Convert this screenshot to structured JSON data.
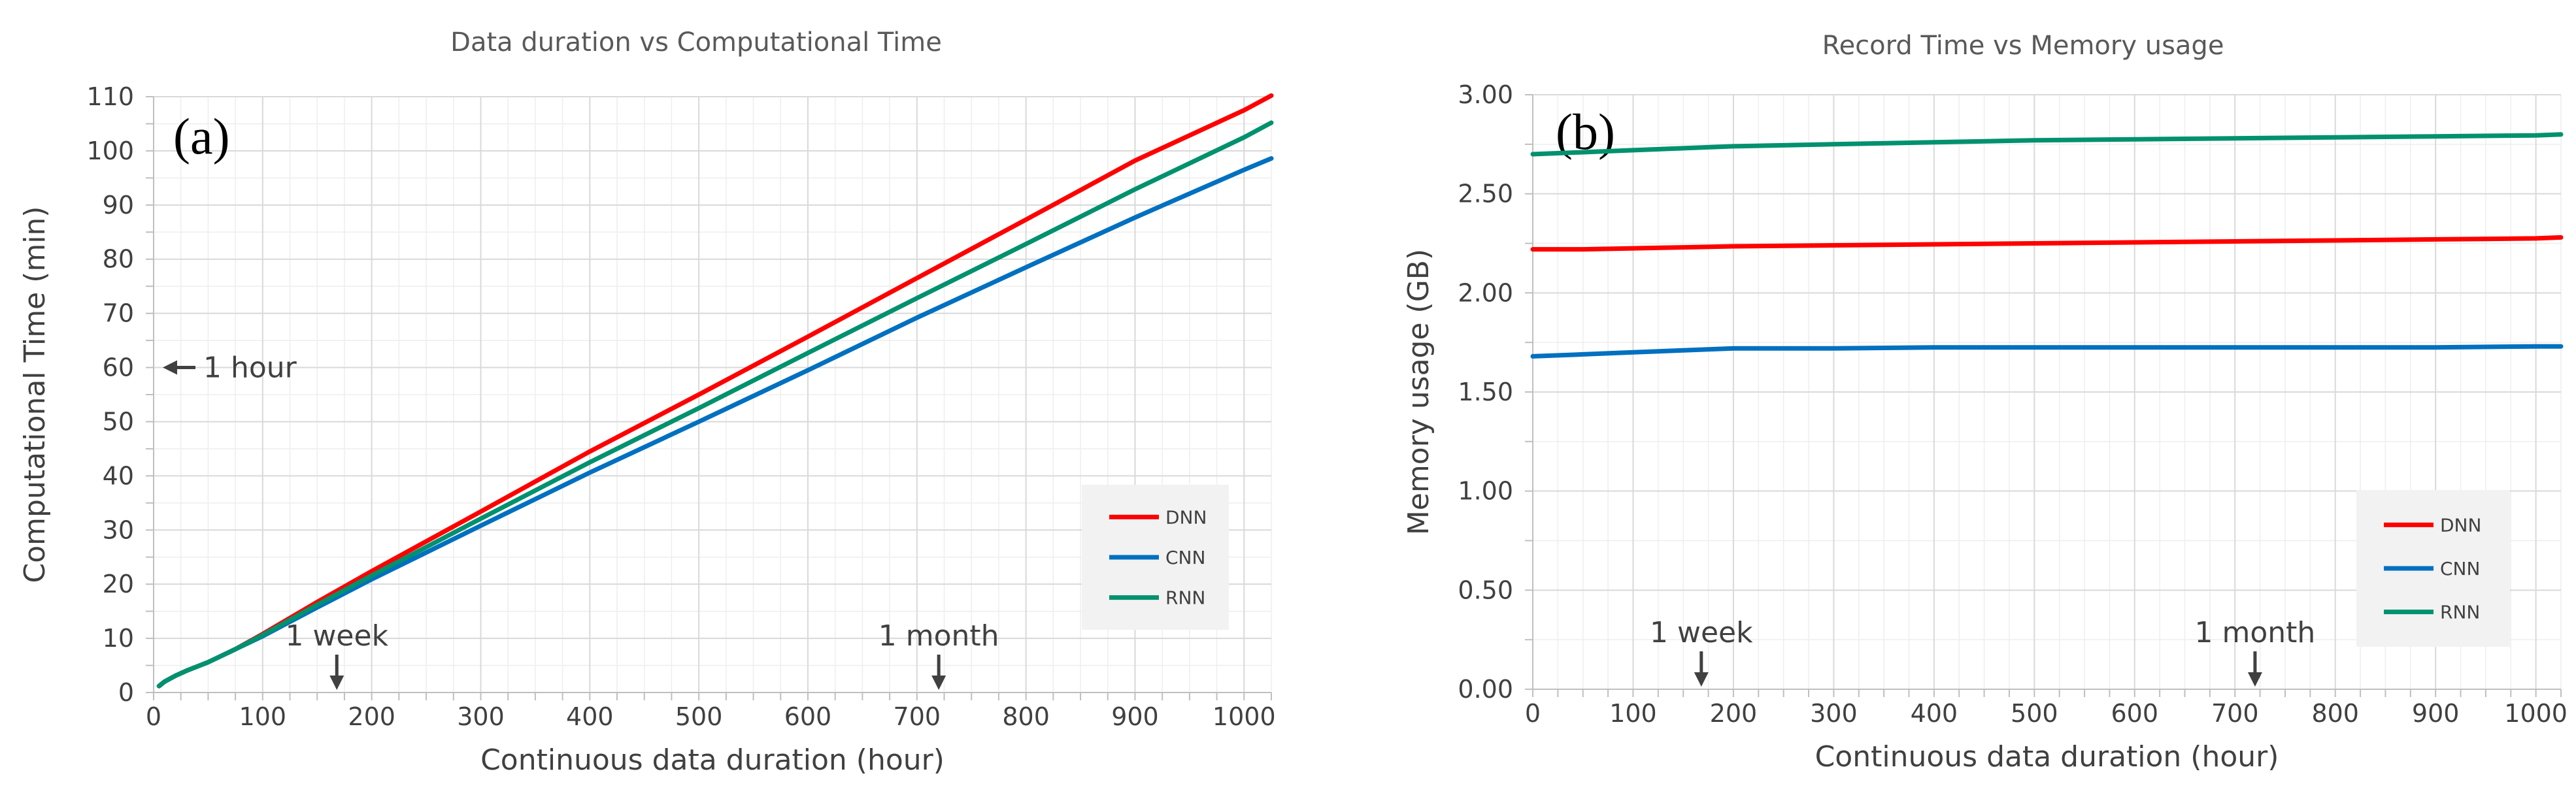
{
  "chart_data": [
    {
      "type": "line",
      "panel": "(a)",
      "title": "Data duration vs Computational Time",
      "xlabel": "Continuous data duration (hour)",
      "ylabel": "Computational Time (min)",
      "xlim": [
        0,
        1025
      ],
      "ylim": [
        0,
        110
      ],
      "xticks": [
        0,
        100,
        200,
        300,
        400,
        500,
        600,
        700,
        800,
        900,
        1000
      ],
      "yticks": [
        0,
        10,
        20,
        30,
        40,
        50,
        60,
        70,
        80,
        90,
        100,
        110
      ],
      "ytick_labels": [
        "0",
        "10",
        "20",
        "30",
        "40",
        "50",
        "60",
        "70",
        "80",
        "90",
        "100",
        "110"
      ],
      "grid": true,
      "legend_position": "right",
      "x": [
        5,
        10,
        20,
        30,
        50,
        75,
        100,
        150,
        200,
        300,
        400,
        500,
        600,
        700,
        800,
        900,
        1000,
        1025
      ],
      "series": [
        {
          "name": "DNN",
          "color": "#ff0000",
          "values": [
            1.2,
            2.0,
            3.1,
            4.0,
            5.6,
            8.0,
            10.8,
            16.7,
            22.4,
            33.4,
            44.5,
            55.0,
            65.7,
            76.5,
            87.3,
            98.2,
            107.5,
            110.2
          ]
        },
        {
          "name": "CNN",
          "color": "#0070c0",
          "values": [
            1.2,
            2.0,
            3.1,
            4.0,
            5.6,
            8.0,
            10.4,
            15.7,
            20.9,
            30.8,
            40.6,
            50.0,
            59.5,
            69.2,
            78.5,
            87.7,
            96.5,
            98.6
          ]
        },
        {
          "name": "RNN",
          "color": "#00916e",
          "values": [
            1.2,
            2.0,
            3.1,
            4.0,
            5.6,
            8.0,
            10.6,
            16.2,
            21.6,
            32.1,
            42.5,
            52.5,
            62.7,
            72.8,
            82.8,
            92.9,
            102.5,
            105.2
          ]
        }
      ],
      "annotations": [
        {
          "text": "1 hour",
          "x": 0,
          "y": 60,
          "arrow": "left"
        },
        {
          "text": "1 week",
          "x": 168,
          "y": 0,
          "arrow": "down"
        },
        {
          "text": "1 month",
          "x": 720,
          "y": 0,
          "arrow": "down"
        }
      ]
    },
    {
      "type": "line",
      "panel": "(b)",
      "title": "Record Time vs Memory usage",
      "xlabel": "Continuous data duration (hour)",
      "ylabel": "Memory usage  (GB)",
      "xlim": [
        0,
        1025
      ],
      "ylim": [
        0,
        3.0
      ],
      "xticks": [
        0,
        100,
        200,
        300,
        400,
        500,
        600,
        700,
        800,
        900,
        1000
      ],
      "yticks": [
        0,
        0.5,
        1.0,
        1.5,
        2.0,
        2.5,
        3.0
      ],
      "ytick_labels": [
        "0.00",
        "0.50",
        "1.00",
        "1.50",
        "2.00",
        "2.50",
        "3.00"
      ],
      "grid": true,
      "legend_position": "right",
      "x": [
        0,
        50,
        100,
        150,
        200,
        300,
        400,
        500,
        600,
        700,
        800,
        900,
        1000,
        1025
      ],
      "series": [
        {
          "name": "DNN",
          "color": "#ff0000",
          "values": [
            2.22,
            2.22,
            2.225,
            2.23,
            2.235,
            2.24,
            2.245,
            2.25,
            2.255,
            2.26,
            2.265,
            2.27,
            2.275,
            2.28
          ]
        },
        {
          "name": "CNN",
          "color": "#0070c0",
          "values": [
            1.68,
            1.69,
            1.7,
            1.71,
            1.72,
            1.72,
            1.725,
            1.725,
            1.725,
            1.725,
            1.725,
            1.725,
            1.73,
            1.73
          ]
        },
        {
          "name": "RNN",
          "color": "#00916e",
          "values": [
            2.7,
            2.71,
            2.72,
            2.73,
            2.74,
            2.75,
            2.76,
            2.77,
            2.775,
            2.78,
            2.785,
            2.79,
            2.795,
            2.8
          ]
        }
      ],
      "annotations": [
        {
          "text": "1 week",
          "x": 168,
          "y": 0,
          "arrow": "down"
        },
        {
          "text": "1 month",
          "x": 720,
          "y": 0,
          "arrow": "down"
        }
      ]
    }
  ]
}
